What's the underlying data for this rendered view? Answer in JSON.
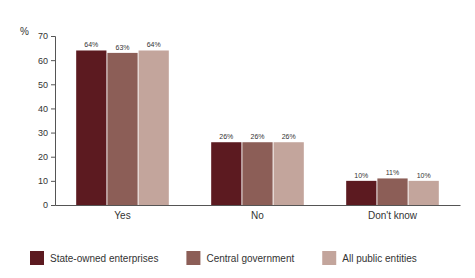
{
  "chart_data": {
    "type": "bar",
    "y_label": "%",
    "categories": [
      "Yes",
      "No",
      "Don't know"
    ],
    "series": [
      {
        "name": "State-owned enterprises",
        "color": "#5c1a20",
        "values": [
          64,
          26,
          10
        ],
        "value_labels": [
          "64%",
          "26%",
          "10%"
        ]
      },
      {
        "name": "Central government",
        "color": "#8c5e57",
        "values": [
          63,
          26,
          11
        ],
        "value_labels": [
          "63%",
          "26%",
          "11%"
        ]
      },
      {
        "name": "All public entities",
        "color": "#c3a59c",
        "values": [
          64,
          26,
          10
        ],
        "value_labels": [
          "64%",
          "26%",
          "10%"
        ]
      }
    ],
    "ylim": [
      0,
      70
    ],
    "yticks": [
      0,
      10,
      20,
      30,
      40,
      50,
      60,
      70
    ],
    "grid": false,
    "data_labels": true,
    "legend": "bottom"
  }
}
